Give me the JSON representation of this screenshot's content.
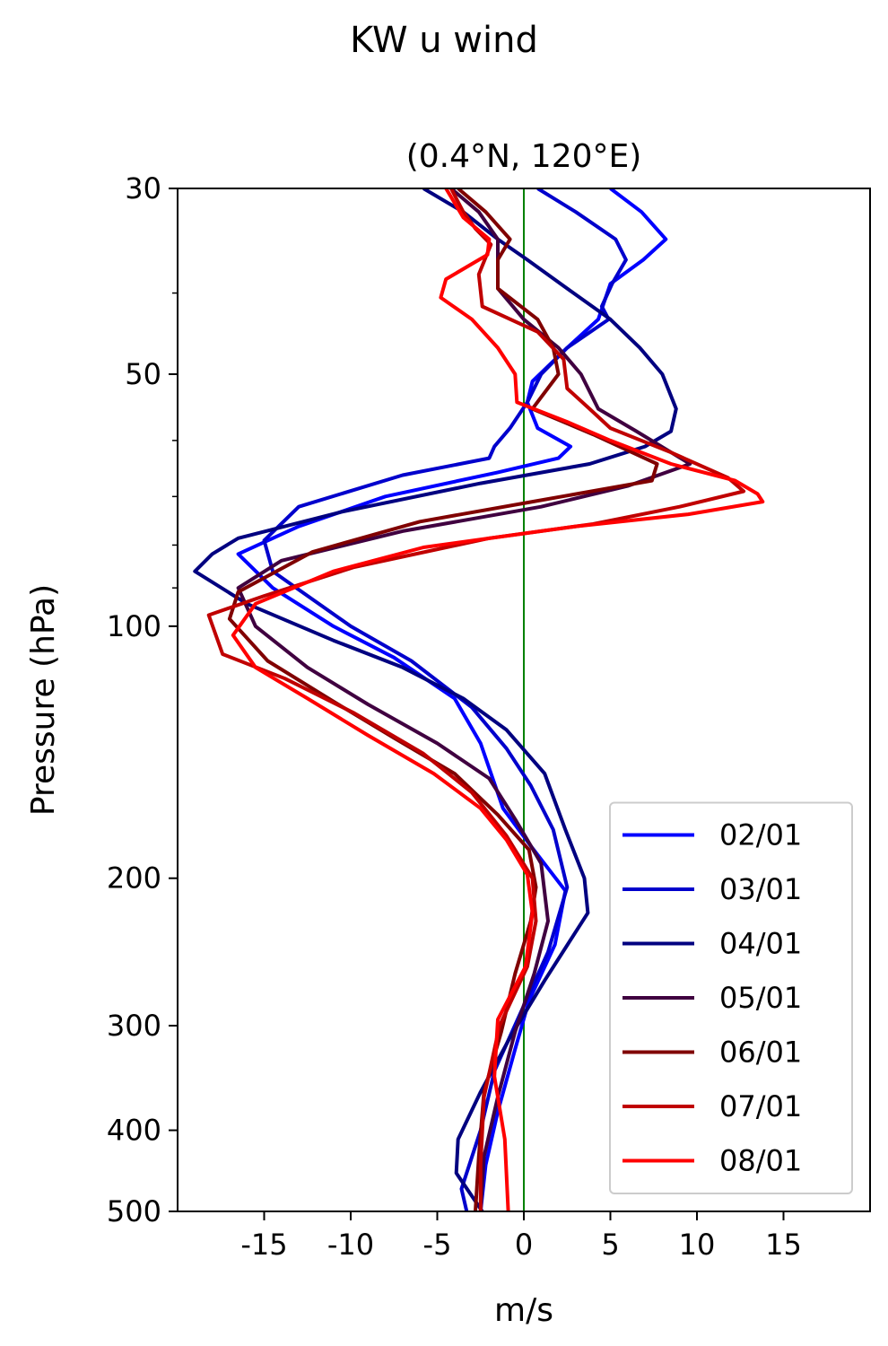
{
  "figure": {
    "suptitle": "KW u wind"
  },
  "chart_data": {
    "type": "line",
    "title": "(0.4°N, 120°E)",
    "xlabel": "m/s",
    "ylabel": "Pressure (hPa)",
    "xlim": [
      -20,
      20
    ],
    "ylim": [
      500,
      30
    ],
    "yscale": "log",
    "xticks": [
      -15,
      -10,
      -5,
      0,
      5,
      10,
      15
    ],
    "xtick_labels": [
      "-15",
      "-10",
      "-5",
      "0",
      "5",
      "10",
      "15"
    ],
    "yticks": [
      30,
      50,
      100,
      200,
      300,
      400,
      500
    ],
    "ytick_labels": [
      "30",
      "50",
      "100",
      "200",
      "300",
      "400",
      "500"
    ],
    "yminor_ticks": [
      40,
      60,
      70,
      80,
      90
    ],
    "reference_line": {
      "x": 0,
      "color": "#008000"
    },
    "legend_position": "lower-right",
    "series": [
      {
        "name": "02/01",
        "color": "#0000ff",
        "points": [
          [
            5,
            30
          ],
          [
            6.8,
            32
          ],
          [
            8.2,
            34.5
          ],
          [
            6.9,
            36.5
          ],
          [
            5,
            39
          ],
          [
            4.3,
            43
          ],
          [
            2.5,
            46.5
          ],
          [
            0.5,
            51
          ],
          [
            0.2,
            54
          ],
          [
            0.8,
            58
          ],
          [
            2.7,
            61
          ],
          [
            2,
            63
          ],
          [
            -1.5,
            65.5
          ],
          [
            -8,
            70
          ],
          [
            -13,
            76
          ],
          [
            -16.5,
            82
          ],
          [
            -14.5,
            90
          ],
          [
            -11,
            100
          ],
          [
            -7.5,
            109
          ],
          [
            -4,
            122
          ],
          [
            -2.5,
            138
          ],
          [
            -1.2,
            165
          ],
          [
            0.4,
            183
          ],
          [
            2.4,
            207
          ],
          [
            1.8,
            240
          ],
          [
            0.3,
            280
          ],
          [
            -0.5,
            320
          ],
          [
            -1.5,
            380
          ],
          [
            -2.2,
            440
          ],
          [
            -2.5,
            500
          ]
        ]
      },
      {
        "name": "03/01",
        "color": "#0000cc",
        "points": [
          [
            0.8,
            30
          ],
          [
            3,
            32
          ],
          [
            5.3,
            34.5
          ],
          [
            5.9,
            36.5
          ],
          [
            5.1,
            39
          ],
          [
            4.5,
            41.5
          ],
          [
            4.9,
            43
          ],
          [
            2.5,
            46.5
          ],
          [
            1,
            50
          ],
          [
            0.2,
            54
          ],
          [
            -0.8,
            58
          ],
          [
            -1.7,
            61
          ],
          [
            -2,
            63
          ],
          [
            -7,
            66
          ],
          [
            -13,
            72
          ],
          [
            -15,
            79
          ],
          [
            -14.5,
            86
          ],
          [
            -10,
            100
          ],
          [
            -6.5,
            110
          ],
          [
            -3,
            125
          ],
          [
            -1,
            140
          ],
          [
            0.4,
            155
          ],
          [
            1.7,
            175
          ],
          [
            2.5,
            205
          ],
          [
            1.4,
            245
          ],
          [
            -0.2,
            290
          ],
          [
            -1.7,
            340
          ],
          [
            -2.5,
            400
          ],
          [
            -3.6,
            470
          ],
          [
            -3.3,
            500
          ]
        ]
      },
      {
        "name": "04/01",
        "color": "#000080",
        "points": [
          [
            -5.8,
            30
          ],
          [
            -3.5,
            32
          ],
          [
            -1.5,
            34.5
          ],
          [
            0.2,
            36.5
          ],
          [
            2.5,
            39.5
          ],
          [
            5,
            43
          ],
          [
            6.7,
            46.5
          ],
          [
            8,
            50
          ],
          [
            8.8,
            55
          ],
          [
            8.5,
            58.5
          ],
          [
            7,
            61
          ],
          [
            3.8,
            64
          ],
          [
            -2.5,
            67.5
          ],
          [
            -10.5,
            73
          ],
          [
            -16.5,
            78.5
          ],
          [
            -18,
            82
          ],
          [
            -19,
            86
          ],
          [
            -16,
            94
          ],
          [
            -11,
            104
          ],
          [
            -7,
            112
          ],
          [
            -3.5,
            122
          ],
          [
            -1,
            133
          ],
          [
            1.2,
            150
          ],
          [
            2.4,
            175
          ],
          [
            3.5,
            200
          ],
          [
            3.7,
            220
          ],
          [
            1.2,
            265
          ],
          [
            -0.8,
            310
          ],
          [
            -2.5,
            360
          ],
          [
            -3.8,
            410
          ],
          [
            -3.9,
            450
          ],
          [
            -2.4,
            500
          ]
        ]
      },
      {
        "name": "05/01",
        "color": "#400040",
        "points": [
          [
            -4.2,
            30
          ],
          [
            -2.6,
            32
          ],
          [
            -1.5,
            34.5
          ],
          [
            -1.5,
            39.5
          ],
          [
            0,
            43
          ],
          [
            2,
            46.5
          ],
          [
            3.3,
            50
          ],
          [
            4.3,
            55
          ],
          [
            6.5,
            58.5
          ],
          [
            9.6,
            64
          ],
          [
            6,
            68
          ],
          [
            1,
            72
          ],
          [
            -7,
            77
          ],
          [
            -14,
            83.5
          ],
          [
            -16.5,
            90
          ],
          [
            -15.5,
            100
          ],
          [
            -12.5,
            112
          ],
          [
            -9,
            124
          ],
          [
            -5,
            138
          ],
          [
            -2,
            152
          ],
          [
            -0.5,
            170
          ],
          [
            1,
            192
          ],
          [
            1.4,
            225
          ],
          [
            0.6,
            260
          ],
          [
            -0.5,
            305
          ],
          [
            -1.5,
            365
          ],
          [
            -2.3,
            430
          ],
          [
            -2.5,
            500
          ]
        ]
      },
      {
        "name": "06/01",
        "color": "#800000",
        "points": [
          [
            -3.8,
            30
          ],
          [
            -2.2,
            32
          ],
          [
            -0.8,
            34.5
          ],
          [
            -1.5,
            36.5
          ],
          [
            -1.5,
            39.5
          ],
          [
            0.8,
            43
          ],
          [
            1.7,
            46.5
          ],
          [
            2,
            50
          ],
          [
            0.5,
            55
          ],
          [
            4,
            59
          ],
          [
            7.7,
            64
          ],
          [
            7.4,
            67
          ],
          [
            0.5,
            71
          ],
          [
            -6,
            75
          ],
          [
            -12.2,
            81.5
          ],
          [
            -16.5,
            91
          ],
          [
            -17,
            98
          ],
          [
            -14.8,
            110
          ],
          [
            -11,
            123
          ],
          [
            -7.5,
            136
          ],
          [
            -4,
            150
          ],
          [
            -1.5,
            168
          ],
          [
            0.3,
            185
          ],
          [
            0.7,
            205
          ],
          [
            0.4,
            225
          ],
          [
            -0.5,
            260
          ],
          [
            -1.3,
            305
          ],
          [
            -2.3,
            360
          ],
          [
            -2.6,
            430
          ],
          [
            -2.8,
            500
          ]
        ]
      },
      {
        "name": "07/01",
        "color": "#c00000",
        "points": [
          [
            -4.2,
            30
          ],
          [
            -3.5,
            32
          ],
          [
            -2.8,
            33.5
          ],
          [
            -1.9,
            35
          ],
          [
            -2.6,
            38
          ],
          [
            -2.4,
            41.5
          ],
          [
            0.8,
            44.5
          ],
          [
            2.3,
            48
          ],
          [
            2.5,
            52
          ],
          [
            3.8,
            55
          ],
          [
            5,
            58
          ],
          [
            8.5,
            62
          ],
          [
            11.8,
            66.5
          ],
          [
            12.7,
            69
          ],
          [
            9,
            72
          ],
          [
            4,
            75.5
          ],
          [
            -2,
            78.5
          ],
          [
            -9.8,
            85
          ],
          [
            -15,
            92
          ],
          [
            -18.2,
            97
          ],
          [
            -17.4,
            108
          ],
          [
            -13.8,
            115.5
          ],
          [
            -9.8,
            127
          ],
          [
            -5.8,
            142
          ],
          [
            -3,
            158
          ],
          [
            -1,
            178
          ],
          [
            0.5,
            200
          ],
          [
            0.7,
            225
          ],
          [
            0.2,
            255
          ],
          [
            -1.4,
            300
          ],
          [
            -2.3,
            365
          ],
          [
            -2.5,
            440
          ],
          [
            -2.5,
            500
          ]
        ]
      },
      {
        "name": "08/01",
        "color": "#ff0000",
        "points": [
          [
            -4.5,
            30
          ],
          [
            -3.5,
            32.5
          ],
          [
            -2,
            34.5
          ],
          [
            -2.1,
            36
          ],
          [
            -4.5,
            38.5
          ],
          [
            -4.8,
            40.5
          ],
          [
            -3,
            43
          ],
          [
            -1.5,
            46.5
          ],
          [
            -0.5,
            50
          ],
          [
            -0.4,
            54
          ],
          [
            2.5,
            57
          ],
          [
            5,
            60
          ],
          [
            8.5,
            64
          ],
          [
            12.2,
            67
          ],
          [
            13.5,
            69.5
          ],
          [
            13.8,
            71
          ],
          [
            9.5,
            73.5
          ],
          [
            3,
            76
          ],
          [
            -5.8,
            80.5
          ],
          [
            -11,
            86
          ],
          [
            -15.5,
            94
          ],
          [
            -16.8,
            102.5
          ],
          [
            -15.5,
            112
          ],
          [
            -12.5,
            122
          ],
          [
            -9,
            135
          ],
          [
            -5.2,
            150
          ],
          [
            -2.5,
            165
          ],
          [
            -1,
            180
          ],
          [
            0.2,
            198
          ],
          [
            0.5,
            220
          ],
          [
            0.1,
            255
          ],
          [
            -1.5,
            295
          ],
          [
            -1.7,
            345
          ],
          [
            -1.1,
            410
          ],
          [
            -0.9,
            500
          ]
        ]
      }
    ]
  }
}
